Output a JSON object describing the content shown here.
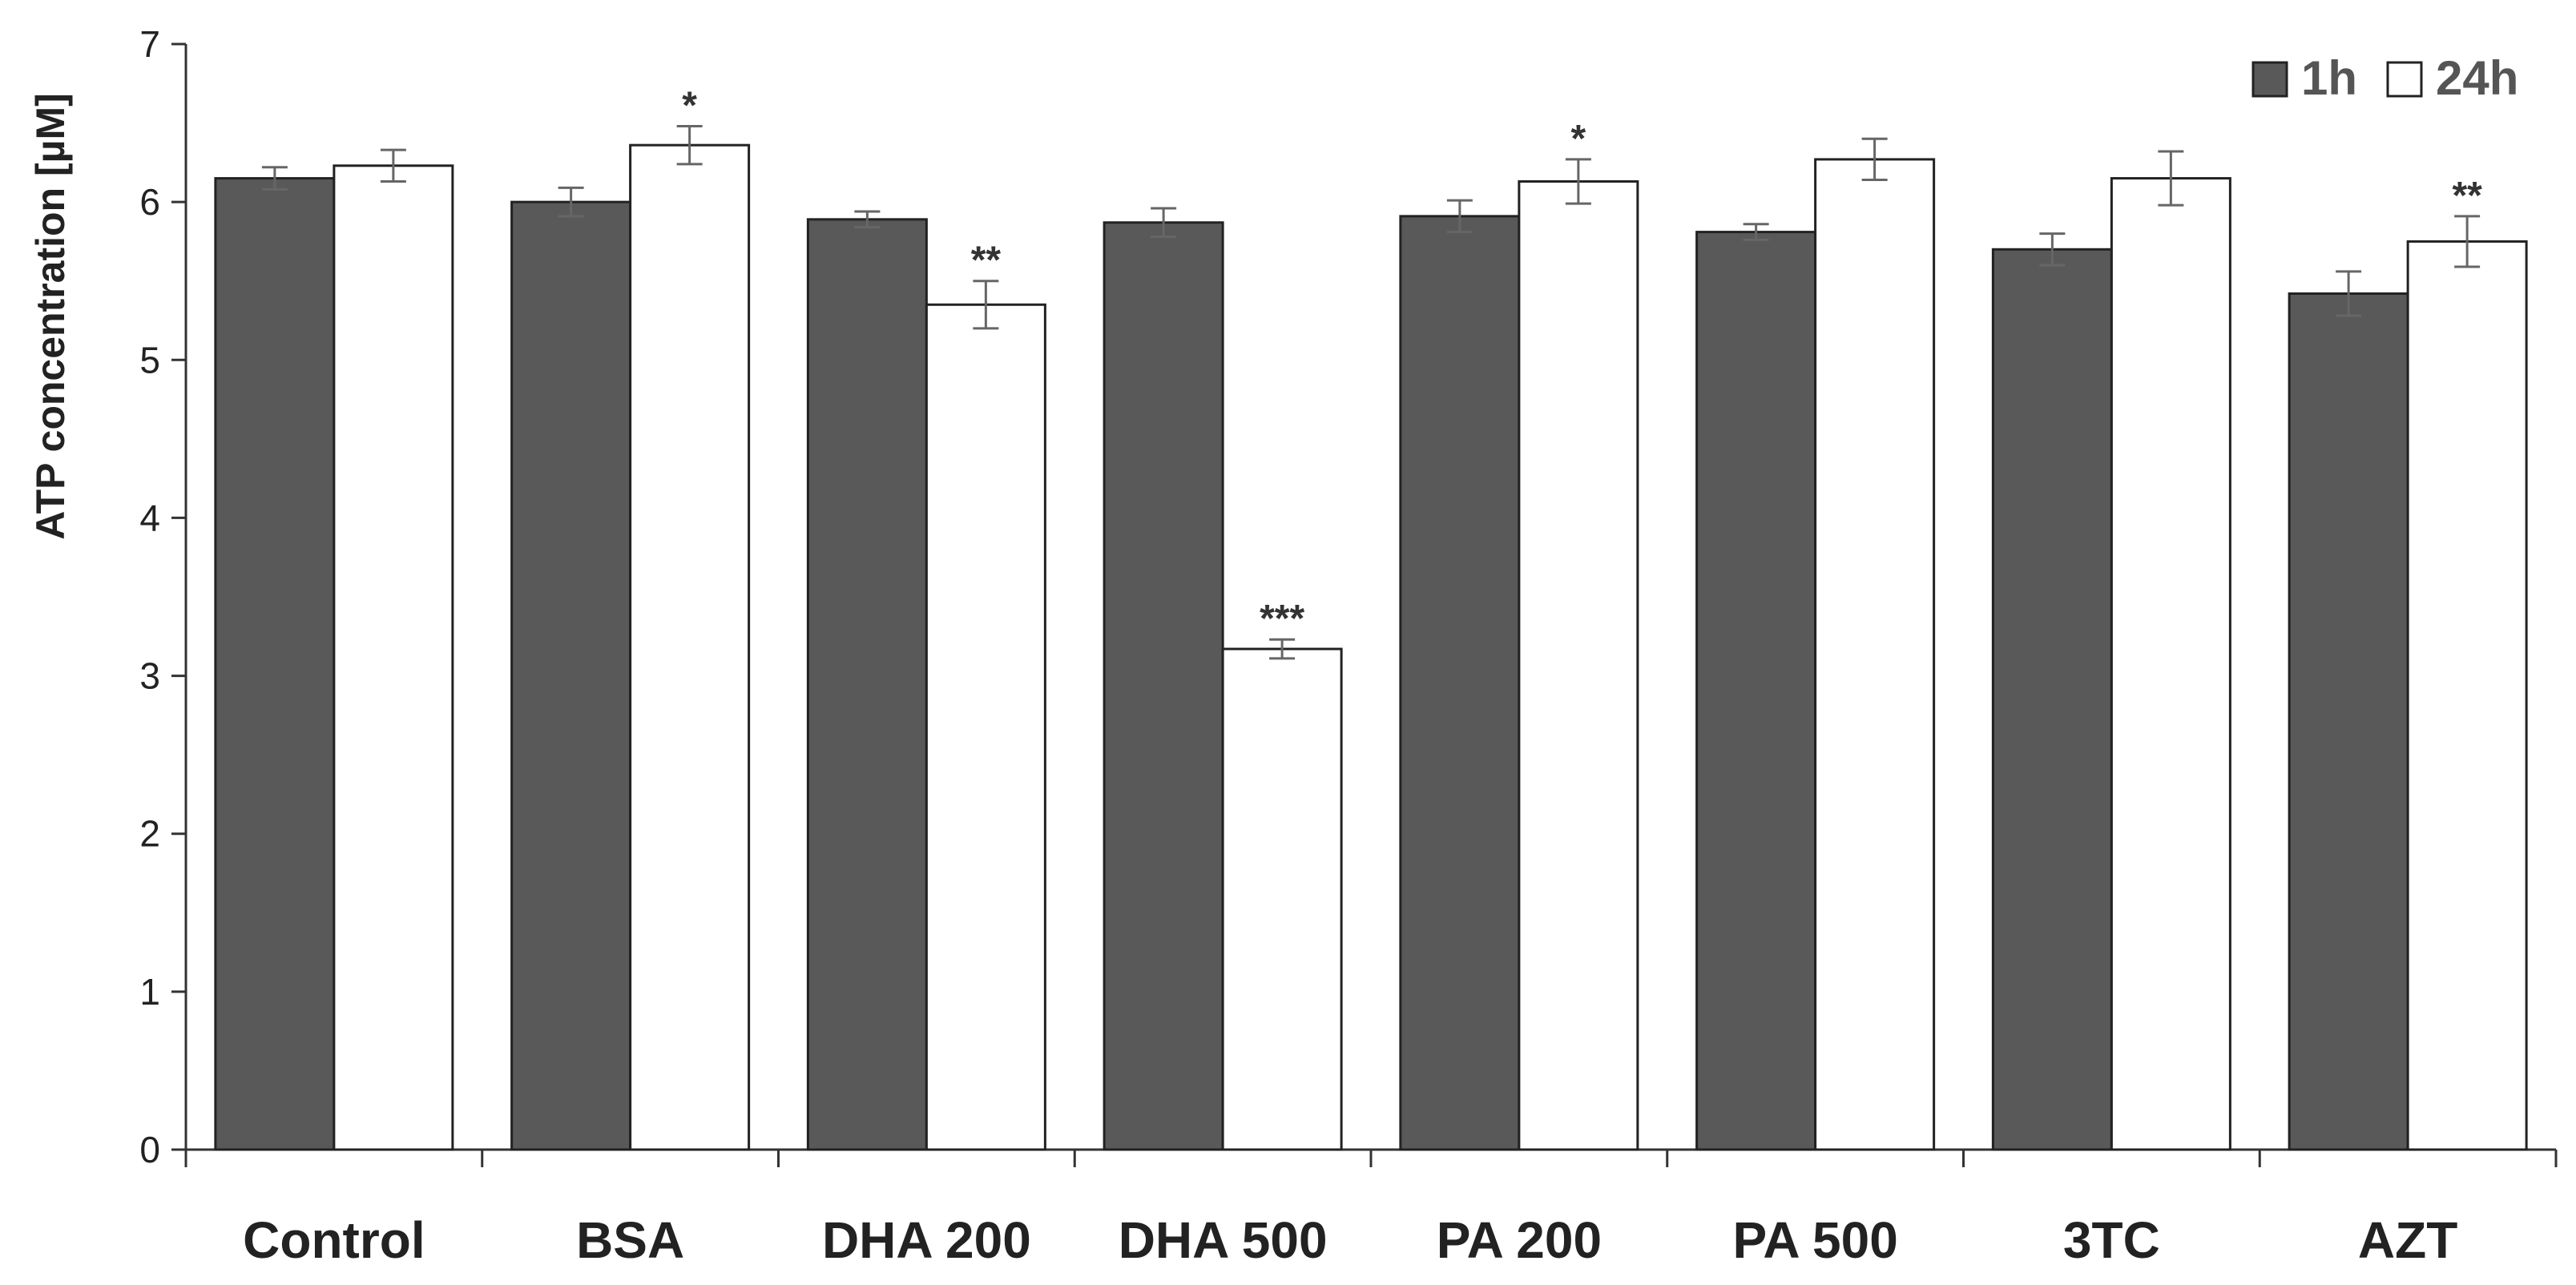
{
  "chart_data": {
    "type": "bar",
    "title": "",
    "xlabel": "",
    "ylabel": "ATP concentration [µM]",
    "ylim": [
      0,
      7
    ],
    "yticks": [
      0,
      1,
      2,
      3,
      4,
      5,
      6,
      7
    ],
    "grid": false,
    "legend_position": "top-right",
    "categories": [
      "Control",
      "BSA",
      "DHA 200",
      "DHA 500",
      "PA 200",
      "PA 500",
      "3TC",
      "AZT"
    ],
    "series": [
      {
        "name": "1h",
        "color": "#595959",
        "values": [
          6.15,
          6.0,
          5.89,
          5.87,
          5.91,
          5.81,
          5.7,
          5.42
        ],
        "errors": [
          0.07,
          0.09,
          0.05,
          0.09,
          0.1,
          0.05,
          0.1,
          0.14
        ],
        "annotations": [
          "",
          "",
          "",
          "",
          "",
          "",
          "",
          ""
        ]
      },
      {
        "name": "24h",
        "color": "#ffffff",
        "values": [
          6.23,
          6.36,
          5.35,
          3.17,
          6.13,
          6.27,
          6.15,
          5.75
        ],
        "errors": [
          0.1,
          0.12,
          0.15,
          0.06,
          0.14,
          0.13,
          0.17,
          0.16
        ],
        "annotations": [
          "",
          "*",
          "**",
          "***",
          "*",
          "",
          "",
          "**"
        ]
      }
    ]
  }
}
